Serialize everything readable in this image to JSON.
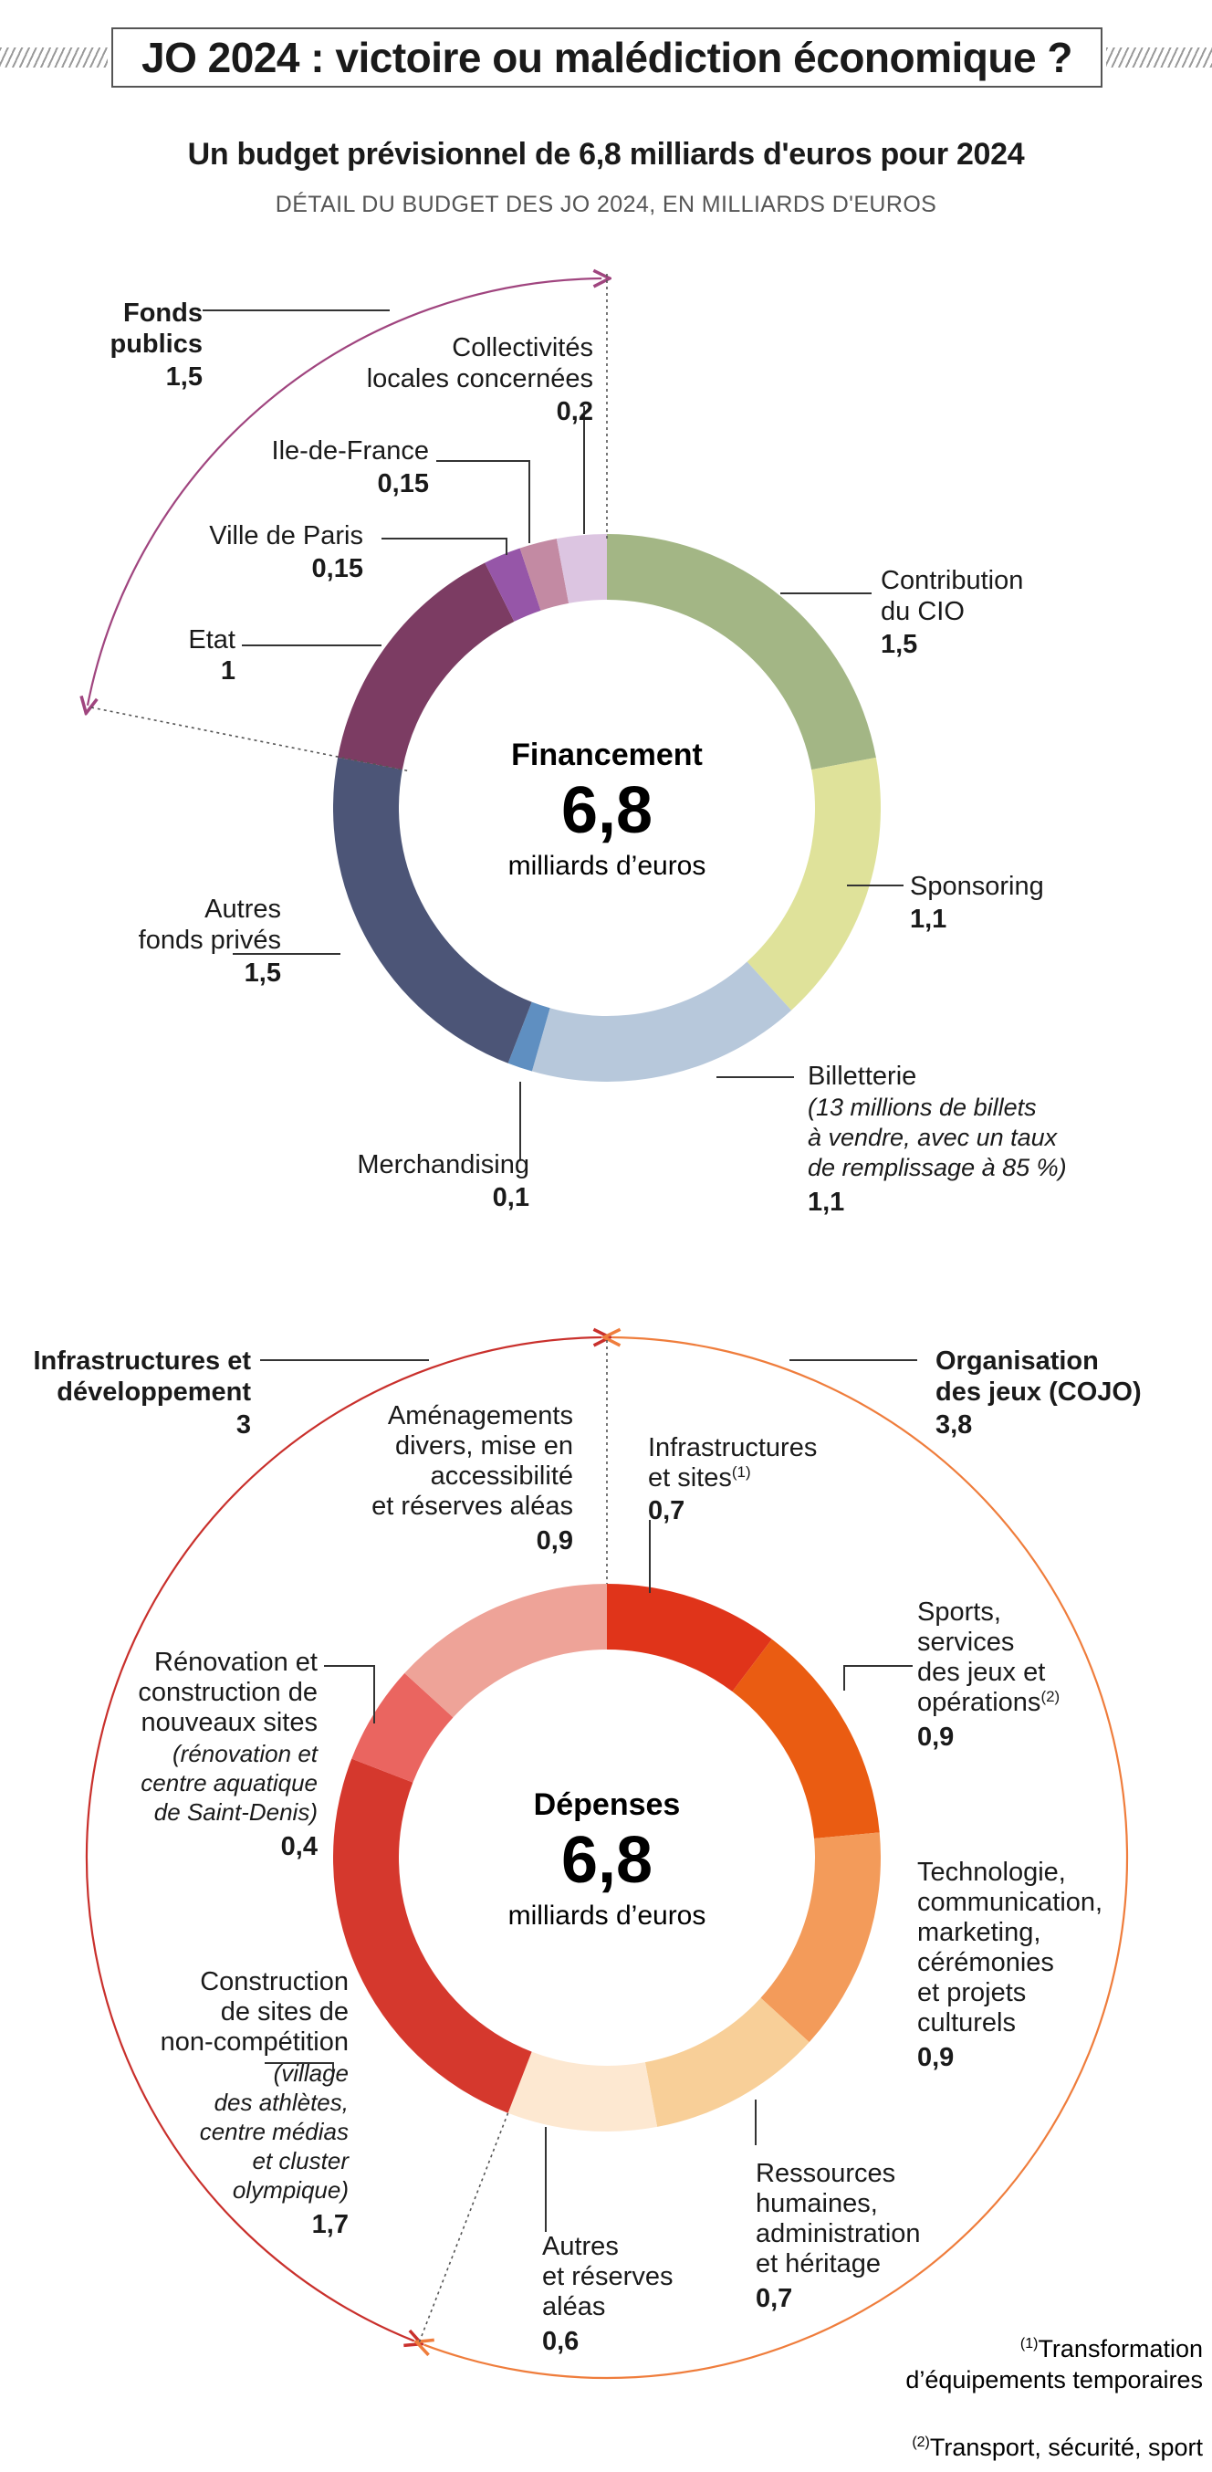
{
  "header": {
    "title": "JO 2024 : victoire ou malédiction économique ?"
  },
  "subtitle": "Un budget prévisionnel de 6,8 milliards d'euros pour 2024",
  "caption": "DÉTAIL DU BUDGET DES JO 2024, EN MILLIARDS D'EUROS",
  "chart_data": [
    {
      "type": "pie",
      "donut": true,
      "title": "Financement",
      "total": 6.8,
      "total_label": "6,8",
      "unit": "milliards d’euros",
      "slices": [
        {
          "name": "Contribution du CIO",
          "value": 1.5,
          "label": "1,5",
          "color": "#a3b685"
        },
        {
          "name": "Sponsoring",
          "value": 1.1,
          "label": "1,1",
          "color": "#dfe29a"
        },
        {
          "name": "Billetterie",
          "value": 1.1,
          "label": "1,1",
          "color": "#b7c8db",
          "note": "(13 millions de billets à vendre, avec un taux de remplissage à 85 %)"
        },
        {
          "name": "Merchandising",
          "value": 0.1,
          "label": "0,1",
          "color": "#5f8fc1"
        },
        {
          "name": "Autres fonds privés",
          "value": 1.5,
          "label": "1,5",
          "color": "#4c5577"
        },
        {
          "name": "Etat",
          "value": 1,
          "label": "1",
          "color": "#7c3c63"
        },
        {
          "name": "Ville de Paris",
          "value": 0.15,
          "label": "0,15",
          "color": "#9656a8"
        },
        {
          "name": "Ile-de-France",
          "value": 0.15,
          "label": "0,15",
          "color": "#c38aa3"
        },
        {
          "name": "Collectivités locales concernées",
          "value": 0.2,
          "label": "0,2",
          "color": "#dcc5e1"
        }
      ],
      "groups": [
        {
          "name": "Fonds publics",
          "value": 1.5,
          "label": "1,5",
          "color": "#a0457f"
        }
      ]
    },
    {
      "type": "pie",
      "donut": true,
      "title": "Dépenses",
      "total": 6.8,
      "total_label": "6,8",
      "unit": "milliards d’euros",
      "slices": [
        {
          "name": "Infrastructures et sites",
          "value": 0.7,
          "label": "0,7",
          "color": "#e0341a",
          "footnote": "(1)"
        },
        {
          "name": "Sports, services des jeux et opérations",
          "value": 0.9,
          "label": "0,9",
          "color": "#ea5c12",
          "footnote": "(2)"
        },
        {
          "name": "Technologie, communication, marketing, cérémonies et projets culturels",
          "value": 0.9,
          "label": "0,9",
          "color": "#f39b5a"
        },
        {
          "name": "Ressources humaines, administration et héritage",
          "value": 0.7,
          "label": "0,7",
          "color": "#f8cf98"
        },
        {
          "name": "Autres et réserves aléas",
          "value": 0.6,
          "label": "0,6",
          "color": "#fde8d1"
        },
        {
          "name": "Construction de sites de non-compétition",
          "value": 1.7,
          "label": "1,7",
          "color": "#d5382d",
          "note": "(village des athlètes, centre médias et cluster olympique)"
        },
        {
          "name": "Rénovation et construction de nouveaux sites",
          "value": 0.4,
          "label": "0,4",
          "color": "#ea6560",
          "note": "(rénovation et centre aquatique de Saint-Denis)"
        },
        {
          "name": "Aménagements divers, mise en accessibilité et réserves aléas",
          "value": 0.9,
          "label": "0,9",
          "color": "#eea398"
        }
      ],
      "groups": [
        {
          "name": "Organisation des jeux (COJO)",
          "value": 3.8,
          "label": "3,8",
          "color": "#ef7d3c"
        },
        {
          "name": "Infrastructures et développement",
          "value": 3,
          "label": "3",
          "color": "#c9302c"
        }
      ]
    }
  ],
  "labels": {
    "fin": {
      "fonds_publics": [
        "Fonds",
        "publics"
      ],
      "fonds_publics_v": "1,5",
      "collectivites": [
        "Collectivités",
        "locales concernées"
      ],
      "collectivites_v": "0,2",
      "idf": "Ile-de-France",
      "idf_v": "0,15",
      "paris": "Ville de Paris",
      "paris_v": "0,15",
      "etat": "Etat",
      "etat_v": "1",
      "cio": [
        "Contribution",
        "du CIO"
      ],
      "cio_v": "1,5",
      "sponsoring": "Sponsoring",
      "sponsoring_v": "1,1",
      "autres": [
        "Autres",
        "fonds privés"
      ],
      "autres_v": "1,5",
      "billet": "Billetterie",
      "billet_note": [
        "(13 millions de billets",
        "à vendre, avec un taux",
        "de remplissage à 85 %)"
      ],
      "billet_v": "1,1",
      "merch": "Merchandising",
      "merch_v": "0,1"
    },
    "dep": {
      "infra_dev": [
        "Infrastructures et",
        "développement"
      ],
      "infra_dev_v": "3",
      "cojo": [
        "Organisation",
        "des jeux (COJO)"
      ],
      "cojo_v": "3,8",
      "amenag": [
        "Aménagements",
        "divers, mise en",
        "accessibilité",
        "et réserves aléas"
      ],
      "amenag_v": "0,9",
      "infra_sites": [
        "Infrastructures",
        "et sites"
      ],
      "infra_sites_sup": "(1)",
      "infra_sites_v": "0,7",
      "sports": [
        "Sports,",
        "services",
        "des jeux et",
        "opérations"
      ],
      "sports_sup": "(2)",
      "sports_v": "0,9",
      "renov": [
        "Rénovation et",
        "construction de",
        "nouveaux sites"
      ],
      "renov_note": [
        "(rénovation et",
        "centre aquatique",
        "de Saint-Denis)"
      ],
      "renov_v": "0,4",
      "techno": [
        "Technologie,",
        "communication,",
        "marketing,",
        "cérémonies",
        "et projets",
        "culturels"
      ],
      "techno_v": "0,9",
      "construct": [
        "Construction",
        "de sites de",
        "non-compétition"
      ],
      "construct_note": [
        "(village",
        "des athlètes,",
        "centre médias",
        "et cluster",
        "olympique)"
      ],
      "construct_v": "1,7",
      "rh": [
        "Ressources",
        "humaines,",
        "administration",
        "et héritage"
      ],
      "rh_v": "0,7",
      "autres": [
        "Autres",
        "et réserves",
        "aléas"
      ],
      "autres_v": "0,6"
    },
    "footnotes": {
      "fn1_mark": "(1)",
      "fn1": [
        "Transformation",
        "d’équipements temporaires"
      ],
      "fn2_mark": "(2)",
      "fn2": "Transport, sécurité, sport"
    }
  }
}
